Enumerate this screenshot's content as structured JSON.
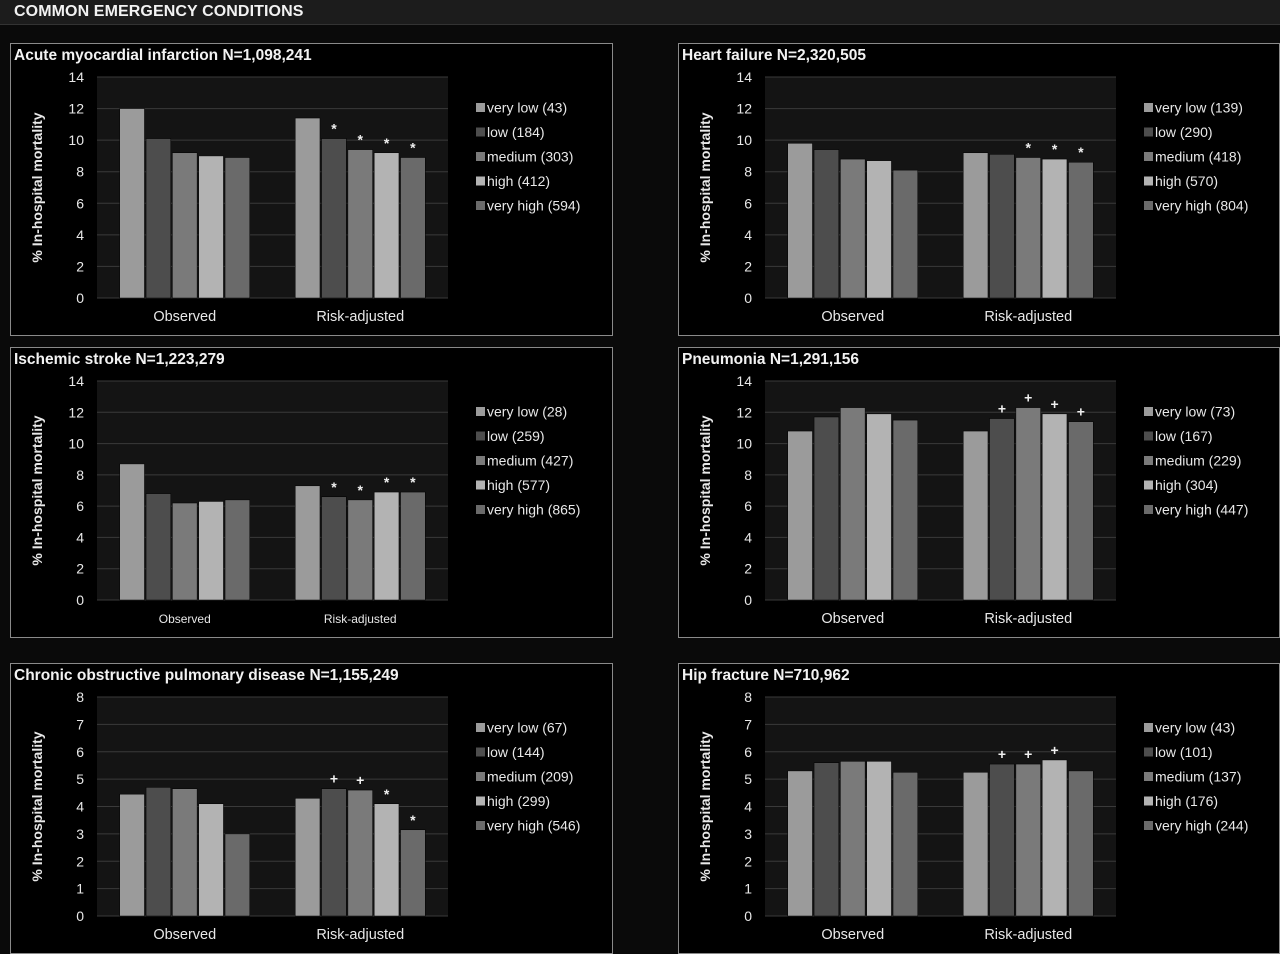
{
  "header": {
    "title": "COMMON EMERGENCY CONDITIONS"
  },
  "colors": {
    "very_low": "#9b9b9b",
    "low": "#4d4d4d",
    "medium": "#7a7a7a",
    "high": "#b3b3b3",
    "very_high": "#6a6a6a",
    "background": "#000000",
    "plot_background": "#141414",
    "gridline": "#3a3a3a",
    "text": "#e8e8e8"
  },
  "chart_data": [
    {
      "type": "bar",
      "title": "Acute myocardial infarction N=1,098,241",
      "ylabel": "% In-hospital mortality",
      "xlabel": "",
      "ylim": [
        0,
        14
      ],
      "ytick_step": 2,
      "grid": true,
      "legend_position": "right",
      "categories": [
        "Observed",
        "Risk-adjusted"
      ],
      "series": [
        {
          "name": "very low (43)",
          "values": [
            12.0,
            11.4
          ]
        },
        {
          "name": "low (184)",
          "values": [
            10.1,
            10.1
          ]
        },
        {
          "name": "medium (303)",
          "values": [
            9.2,
            9.4
          ]
        },
        {
          "name": "high (412)",
          "values": [
            9.0,
            9.2
          ]
        },
        {
          "name": "very high (594)",
          "values": [
            8.9,
            8.9
          ]
        }
      ],
      "annotations": [
        "",
        "*",
        "*",
        "*",
        "*"
      ]
    },
    {
      "type": "bar",
      "title": "Heart failure N=2,320,505",
      "ylabel": "% In-hospital mortality",
      "xlabel": "",
      "ylim": [
        0,
        14
      ],
      "ytick_step": 2,
      "grid": true,
      "legend_position": "right",
      "categories": [
        "Observed",
        "Risk-adjusted"
      ],
      "series": [
        {
          "name": "very low (139)",
          "values": [
            9.8,
            9.2
          ]
        },
        {
          "name": "low (290)",
          "values": [
            9.4,
            9.1
          ]
        },
        {
          "name": "medium (418)",
          "values": [
            8.8,
            8.9
          ]
        },
        {
          "name": "high (570)",
          "values": [
            8.7,
            8.8
          ]
        },
        {
          "name": "very high (804)",
          "values": [
            8.1,
            8.6
          ]
        }
      ],
      "annotations": [
        "",
        "",
        "*",
        "*",
        "*"
      ]
    },
    {
      "type": "bar",
      "title": "Ischemic stroke N=1,223,279",
      "ylabel": "% In-hospital mortality",
      "xlabel": "",
      "ylim": [
        0,
        14
      ],
      "ytick_step": 2,
      "grid": true,
      "legend_position": "right",
      "categories": [
        "Observed",
        "Risk-adjusted"
      ],
      "series": [
        {
          "name": "very low (28)",
          "values": [
            8.7,
            7.3
          ]
        },
        {
          "name": "low (259)",
          "values": [
            6.8,
            6.6
          ]
        },
        {
          "name": "medium (427)",
          "values": [
            6.2,
            6.4
          ]
        },
        {
          "name": "high (577)",
          "values": [
            6.3,
            6.9
          ]
        },
        {
          "name": "very high (865)",
          "values": [
            6.4,
            6.9
          ]
        }
      ],
      "annotations": [
        "",
        "*",
        "*",
        "*",
        "*"
      ]
    },
    {
      "type": "bar",
      "title": "Pneumonia N=1,291,156",
      "ylabel": "% In-hospital mortality",
      "xlabel": "",
      "ylim": [
        0,
        14
      ],
      "ytick_step": 2,
      "grid": true,
      "legend_position": "right",
      "categories": [
        "Observed",
        "Risk-adjusted"
      ],
      "series": [
        {
          "name": "very low (73)",
          "values": [
            10.8,
            10.8
          ]
        },
        {
          "name": "low (167)",
          "values": [
            11.7,
            11.6
          ]
        },
        {
          "name": "medium (229)",
          "values": [
            12.3,
            12.3
          ]
        },
        {
          "name": "high (304)",
          "values": [
            11.9,
            11.9
          ]
        },
        {
          "name": "very high (447)",
          "values": [
            11.5,
            11.4
          ]
        }
      ],
      "annotations": [
        "",
        "+",
        "+",
        "+",
        "+"
      ]
    },
    {
      "type": "bar",
      "title": "Chronic obstructive pulmonary disease N=1,155,249",
      "ylabel": "% In-hospital mortality",
      "xlabel": "",
      "ylim": [
        0,
        8
      ],
      "ytick_step": 1,
      "grid": true,
      "legend_position": "right",
      "categories": [
        "Observed",
        "Risk-adjusted"
      ],
      "series": [
        {
          "name": "very low (67)",
          "values": [
            4.45,
            4.3
          ]
        },
        {
          "name": "low (144)",
          "values": [
            4.7,
            4.65
          ]
        },
        {
          "name": "medium (209)",
          "values": [
            4.65,
            4.6
          ]
        },
        {
          "name": "high (299)",
          "values": [
            4.1,
            4.1
          ]
        },
        {
          "name": "very high (546)",
          "values": [
            3.0,
            3.15
          ]
        }
      ],
      "annotations": [
        "",
        "+",
        "+",
        "*",
        "*"
      ]
    },
    {
      "type": "bar",
      "title": "Hip fracture N=710,962",
      "ylabel": "% In-hospital mortality",
      "xlabel": "",
      "ylim": [
        0,
        8
      ],
      "ytick_step": 1,
      "grid": true,
      "legend_position": "right",
      "categories": [
        "Observed",
        "Risk-adjusted"
      ],
      "series": [
        {
          "name": "very low (43)",
          "values": [
            5.3,
            5.25
          ]
        },
        {
          "name": "low (101)",
          "values": [
            5.6,
            5.55
          ]
        },
        {
          "name": "medium (137)",
          "values": [
            5.65,
            5.55
          ]
        },
        {
          "name": "high (176)",
          "values": [
            5.65,
            5.7
          ]
        },
        {
          "name": "very high (244)",
          "values": [
            5.25,
            5.3
          ]
        }
      ],
      "annotations": [
        "",
        "+",
        "+",
        "+",
        ""
      ]
    }
  ]
}
